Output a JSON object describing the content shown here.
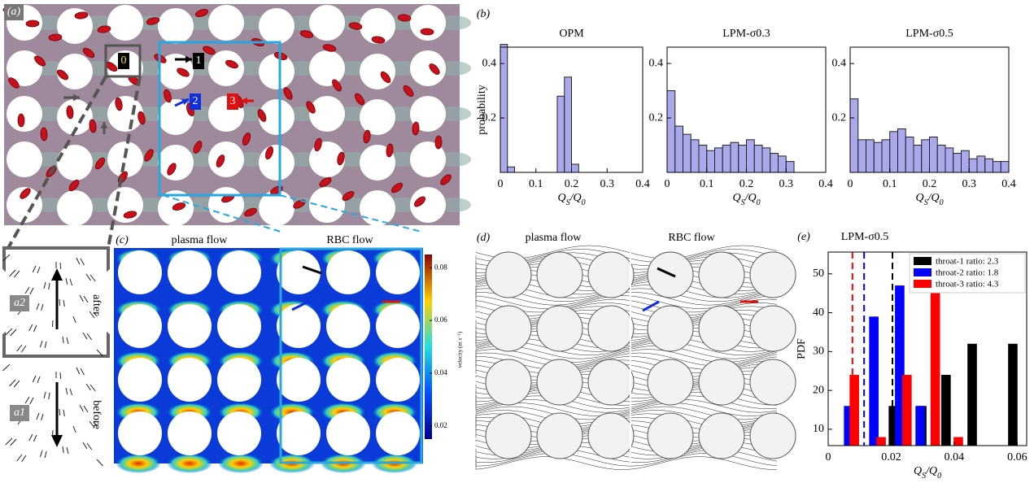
{
  "figure": {
    "panel_labels": [
      "(a)",
      "(b)",
      "(c)",
      "(d)",
      "(e)"
    ],
    "a": {
      "markers": [
        "0",
        "1",
        "2",
        "3"
      ],
      "insets": [
        "a2",
        "a1"
      ],
      "inset_notes": [
        "after",
        "before"
      ]
    },
    "c": {
      "titles": [
        "plasma flow",
        "RBC flow"
      ],
      "colorbar": {
        "label": "velocity (m s⁻¹)",
        "lim": [
          0.015,
          0.085
        ],
        "ticks": [
          0.08,
          0.06,
          0.04,
          0.02
        ]
      }
    },
    "d": {
      "titles": [
        "plasma flow",
        "RBC flow"
      ]
    }
  },
  "chart_data": [
    {
      "type": "histogram",
      "title": "OPM",
      "ylabel": "probability",
      "xlabel": [
        "Q",
        "S",
        "/Q",
        "0"
      ],
      "color": "#8c8ce6",
      "bins": [
        0,
        0.02,
        0.04,
        0.06,
        0.08,
        0.1,
        0.12,
        0.14,
        0.16,
        0.18,
        0.2,
        0.22,
        0.24,
        0.26,
        0.28,
        0.3,
        0.32,
        0.34,
        0.36,
        0.38,
        0.4
      ],
      "values": [
        0.47,
        0.02,
        0,
        0,
        0,
        0,
        0,
        0,
        0.28,
        0.35,
        0.03,
        0,
        0,
        0,
        0,
        0,
        0,
        0,
        0,
        0
      ],
      "xlim": [
        0,
        0.4
      ],
      "ylim": [
        0,
        0.46
      ],
      "xticks": [
        0,
        0.1,
        0.2,
        0.3,
        0.4
      ],
      "yticks": [
        0.2,
        0.4
      ]
    },
    {
      "type": "histogram",
      "title": "LPM-σ0.3",
      "xlabel": [
        "Q",
        "S",
        "/Q",
        "0"
      ],
      "color": "#8c8ce6",
      "bins": [
        0,
        0.02,
        0.04,
        0.06,
        0.08,
        0.1,
        0.12,
        0.14,
        0.16,
        0.18,
        0.2,
        0.22,
        0.24,
        0.26,
        0.28,
        0.3,
        0.32,
        0.34,
        0.36,
        0.38,
        0.4
      ],
      "values": [
        0.3,
        0.17,
        0.14,
        0.12,
        0.1,
        0.08,
        0.09,
        0.1,
        0.11,
        0.1,
        0.12,
        0.1,
        0.09,
        0.07,
        0.06,
        0.04,
        0,
        0,
        0,
        0
      ],
      "xlim": [
        0,
        0.4
      ],
      "ylim": [
        0,
        0.46
      ],
      "xticks": [
        0,
        0.1,
        0.2,
        0.3,
        0.4
      ],
      "yticks": [
        0.2,
        0.4
      ]
    },
    {
      "type": "histogram",
      "title": "LPM-σ0.5",
      "xlabel": [
        "Q",
        "S",
        "/Q",
        "0"
      ],
      "color": "#8c8ce6",
      "bins": [
        0,
        0.02,
        0.04,
        0.06,
        0.08,
        0.1,
        0.12,
        0.14,
        0.16,
        0.18,
        0.2,
        0.22,
        0.24,
        0.26,
        0.28,
        0.3,
        0.32,
        0.34,
        0.36,
        0.38,
        0.4
      ],
      "values": [
        0.27,
        0.12,
        0.12,
        0.11,
        0.12,
        0.15,
        0.16,
        0.13,
        0.1,
        0.12,
        0.13,
        0.1,
        0.09,
        0.07,
        0.08,
        0.05,
        0.06,
        0.05,
        0.04,
        0.04
      ],
      "xlim": [
        0,
        0.4
      ],
      "ylim": [
        0,
        0.46
      ],
      "xticks": [
        0,
        0.1,
        0.2,
        0.3,
        0.4
      ],
      "yticks": [
        0.2,
        0.4
      ]
    },
    {
      "type": "bar",
      "title": "LPM-σ0.5",
      "ylabel": "PDF",
      "xlabel": [
        "Q",
        "S",
        "/Q",
        "0"
      ],
      "series": [
        {
          "name": "throat-1 ratio: 2.3",
          "color": "#000000",
          "x": [
            0.0207,
            0.0297,
            0.0374,
            0.0457,
            0.0586
          ],
          "values": [
            16,
            16,
            24,
            32,
            32
          ]
        },
        {
          "name": "throat-2 ratio: 1.8",
          "color": "#0000ff",
          "x": [
            0.0065,
            0.0145,
            0.0227,
            0.0292
          ],
          "values": [
            16,
            39,
            47,
            16
          ]
        },
        {
          "name": "throat-3 ratio: 4.3",
          "color": "#ff0000",
          "x": [
            0.0083,
            0.0168,
            0.025,
            0.034,
            0.0413
          ],
          "values": [
            24,
            8,
            24,
            55,
            8
          ]
        }
      ],
      "mean_lines": [
        {
          "x": 0.0204,
          "color": "#000000"
        },
        {
          "x": 0.0114,
          "color": "#0000ff"
        },
        {
          "x": 0.0077,
          "color": "#ff0000"
        }
      ],
      "bar_width": 0.003,
      "xlim": [
        0,
        0.063
      ],
      "ylim": [
        5.8,
        55.6
      ],
      "xticks": [
        0,
        0.02,
        0.04,
        0.06
      ],
      "yticks": [
        10,
        20,
        30,
        40,
        50
      ],
      "legend": "upper right"
    }
  ]
}
